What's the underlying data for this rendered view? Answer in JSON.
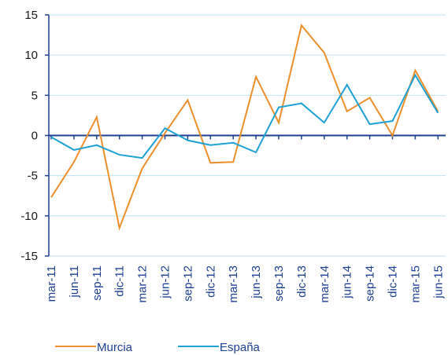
{
  "chart_data": {
    "type": "line",
    "categories": [
      "mar-11",
      "jun-11",
      "sep-11",
      "dic-11",
      "mar-12",
      "jun-12",
      "sep-12",
      "dic-12",
      "mar-13",
      "jun-13",
      "sep-13",
      "dic-13",
      "mar-14",
      "jun-14",
      "sep-14",
      "dic-14",
      "mar-15",
      "jun-15"
    ],
    "series": [
      {
        "name": "Murcia",
        "color": "#ec8f2c",
        "values": [
          -7.7,
          -3.3,
          2.3,
          -11.5,
          -4.1,
          0.3,
          4.4,
          -3.4,
          -3.3,
          7.3,
          1.6,
          13.7,
          10.3,
          3.0,
          4.7,
          0.0,
          8.1,
          3.0
        ]
      },
      {
        "name": "España",
        "color": "#1da1d6",
        "values": [
          -0.2,
          -1.8,
          -1.2,
          -2.4,
          -2.8,
          0.9,
          -0.6,
          -1.2,
          -0.9,
          -2.1,
          3.5,
          4.0,
          1.6,
          6.3,
          1.4,
          1.8,
          7.5,
          2.8
        ]
      }
    ],
    "ylim": [
      -15,
      15
    ],
    "yticks": [
      -15,
      -10,
      -5,
      0,
      5,
      10,
      15
    ],
    "grid": true
  }
}
